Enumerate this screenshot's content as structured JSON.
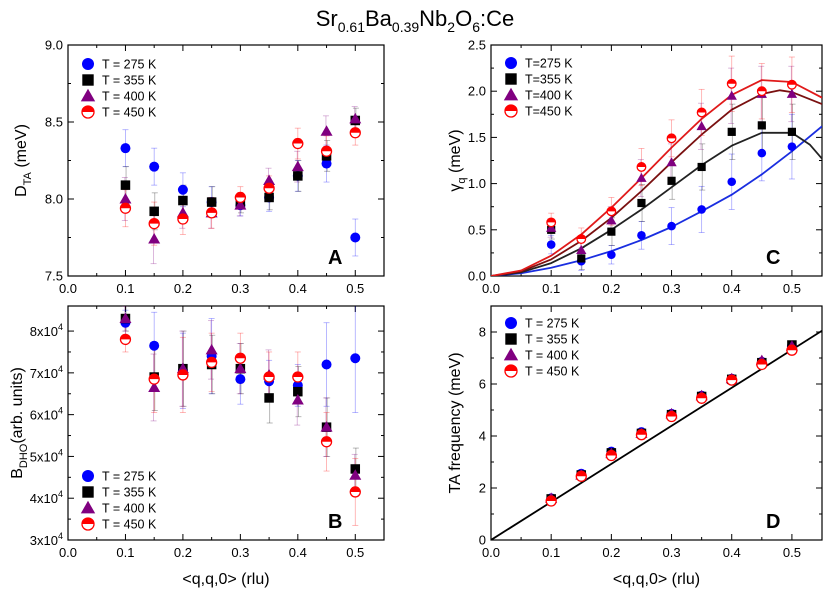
{
  "figure": {
    "title_main": "Sr",
    "title_sub1": "0.61",
    "title_mid": "Ba",
    "title_sub2": "0.39",
    "title_tail1": "Nb",
    "title_sub3": "2",
    "title_tail2": "O",
    "title_sub4": "6",
    "title_end": ":Ce"
  },
  "colors": {
    "275": "#0000ff",
    "355": "#000000",
    "400": "#800080",
    "450": "#ff0000",
    "fit_275": "#1a2ee0",
    "fit_355": "#222222",
    "fit_400": "#7a1010",
    "fit_450": "#e01a1a",
    "fit_d": "#000000"
  },
  "chart_data": [
    {
      "id": "A",
      "type": "scatter",
      "panel_label": "A",
      "xlabel": "",
      "ylabel_main": "D",
      "ylabel_sub": "TA",
      "ylabel_tail": " (meV)",
      "xlim": [
        0.0,
        0.55
      ],
      "ylim": [
        7.5,
        9.0
      ],
      "xticks": [
        0.0,
        0.1,
        0.2,
        0.3,
        0.4,
        0.5
      ],
      "xtick_labels": [
        "0.0",
        "0.1",
        "0.2",
        "0.3",
        "0.4",
        "0.5"
      ],
      "yticks": [
        7.5,
        8.0,
        8.5,
        9.0
      ],
      "ytick_labels": [
        "7.5",
        "8.0",
        "8.5",
        "9.0"
      ],
      "legend_position": "top-left",
      "x": [
        0.1,
        0.15,
        0.2,
        0.25,
        0.3,
        0.35,
        0.4,
        0.45,
        0.5
      ],
      "series": [
        {
          "name": "T = 275 K",
          "key": "275",
          "marker": "circle",
          "values": [
            8.33,
            8.21,
            8.06,
            7.98,
            7.96,
            8.01,
            8.15,
            8.23,
            7.75
          ],
          "err": [
            0.12,
            0.12,
            0.11,
            0.1,
            0.07,
            0.09,
            0.1,
            0.12,
            0.12
          ]
        },
        {
          "name": "T = 355 K",
          "key": "355",
          "marker": "square",
          "values": [
            8.09,
            7.92,
            7.99,
            7.98,
            7.97,
            8.01,
            8.15,
            8.28,
            8.51
          ],
          "err": [
            0.12,
            0.12,
            0.1,
            0.1,
            0.06,
            0.08,
            0.1,
            0.1,
            0.08
          ]
        },
        {
          "name": "T = 400 K",
          "key": "400",
          "marker": "triangle",
          "values": [
            8.0,
            7.74,
            7.91,
            7.91,
            7.96,
            8.12,
            8.21,
            8.44,
            8.52
          ],
          "err": [
            0.14,
            0.16,
            0.1,
            0.1,
            0.07,
            0.08,
            0.1,
            0.1,
            0.08
          ]
        },
        {
          "name": "T = 450 K",
          "key": "450",
          "marker": "halfcircle",
          "values": [
            7.94,
            7.84,
            7.87,
            7.91,
            8.01,
            8.07,
            8.36,
            8.31,
            8.43
          ],
          "err": [
            0.12,
            0.14,
            0.1,
            0.1,
            0.07,
            0.08,
            0.1,
            0.1,
            0.08
          ]
        }
      ]
    },
    {
      "id": "B",
      "type": "scatter",
      "panel_label": "B",
      "xlabel": "<q,q,0> (rlu)",
      "ylabel_main": "B",
      "ylabel_sub": "DHO",
      "ylabel_tail": "(arb. units)",
      "xlim": [
        0.0,
        0.55
      ],
      "ylim": [
        30000,
        86000
      ],
      "xticks": [
        0.0,
        0.1,
        0.2,
        0.3,
        0.4,
        0.5
      ],
      "xtick_labels": [
        "0.0",
        "0.1",
        "0.2",
        "0.3",
        "0.4",
        "0.5"
      ],
      "yticks": [
        30000,
        40000,
        50000,
        60000,
        70000,
        80000
      ],
      "ytick_mant": [
        "3x10",
        "4x10",
        "5x10",
        "6x10",
        "7x10",
        "8x10"
      ],
      "ytick_exp": [
        "4",
        "4",
        "4",
        "4",
        "4",
        "4"
      ],
      "legend_position": "bottom-left",
      "x": [
        0.1,
        0.15,
        0.2,
        0.25,
        0.3,
        0.35,
        0.4,
        0.45,
        0.5
      ],
      "series": [
        {
          "name": "T = 275 K",
          "key": "275",
          "marker": "circle",
          "values": [
            82000,
            76500,
            70500,
            74000,
            68500,
            68000,
            67000,
            72000,
            73500
          ],
          "err": [
            3000,
            8000,
            9000,
            9000,
            6000,
            5000,
            5000,
            10000,
            13000
          ]
        },
        {
          "name": "T = 355 K",
          "key": "355",
          "marker": "square",
          "values": [
            83000,
            69000,
            71000,
            72000,
            71000,
            64000,
            65500,
            57000,
            47000
          ],
          "err": [
            3000,
            8000,
            9000,
            7000,
            6000,
            6000,
            6000,
            7000,
            5000
          ]
        },
        {
          "name": "T = 400 K",
          "key": "400",
          "marker": "triangle",
          "values": [
            83000,
            66500,
            71000,
            75500,
            71000,
            69500,
            63500,
            57000,
            45500
          ],
          "err": [
            3000,
            8000,
            9000,
            7000,
            6000,
            6000,
            6000,
            7000,
            5000
          ]
        },
        {
          "name": "T = 450 K",
          "key": "450",
          "marker": "halfcircle",
          "values": [
            78000,
            68500,
            69500,
            72500,
            73500,
            69000,
            69000,
            53500,
            41500
          ],
          "err": [
            3000,
            8000,
            9000,
            7000,
            6000,
            6000,
            6000,
            7000,
            8000
          ]
        }
      ]
    },
    {
      "id": "C",
      "type": "scatter",
      "panel_label": "C",
      "xlabel": "",
      "ylabel_main": "γ",
      "ylabel_sub": "q",
      "ylabel_tail": " (meV)",
      "xlim": [
        0.0,
        0.55
      ],
      "ylim": [
        0.0,
        2.5
      ],
      "xticks": [
        0.0,
        0.1,
        0.2,
        0.3,
        0.4,
        0.5
      ],
      "xtick_labels": [
        "0.0",
        "0.1",
        "0.2",
        "0.3",
        "0.4",
        "0.5"
      ],
      "yticks": [
        0.0,
        0.5,
        1.0,
        1.5,
        2.0,
        2.5
      ],
      "ytick_labels": [
        "0.0",
        "0.5",
        "1.0",
        "1.5",
        "2.0",
        "2.5"
      ],
      "legend_position": "top-left",
      "x": [
        0.1,
        0.15,
        0.2,
        0.25,
        0.3,
        0.35,
        0.4,
        0.45,
        0.5
      ],
      "series": [
        {
          "name": "T=275 K",
          "key": "275",
          "marker": "circle",
          "values": [
            0.34,
            0.16,
            0.23,
            0.44,
            0.54,
            0.72,
            1.02,
            1.33,
            1.4
          ],
          "err": [
            0.1,
            0.1,
            0.1,
            0.15,
            0.2,
            0.25,
            0.3,
            0.3,
            0.35
          ]
        },
        {
          "name": "T=355 K",
          "key": "355",
          "marker": "square",
          "values": [
            0.5,
            0.19,
            0.48,
            0.79,
            1.03,
            1.18,
            1.56,
            1.63,
            1.56
          ],
          "err": [
            0.1,
            0.12,
            0.15,
            0.2,
            0.2,
            0.25,
            0.3,
            0.3,
            0.3
          ]
        },
        {
          "name": "T=400 K",
          "key": "400",
          "marker": "triangle",
          "values": [
            0.52,
            0.28,
            0.6,
            1.06,
            1.23,
            1.62,
            1.95,
            1.97,
            1.97
          ],
          "err": [
            0.1,
            0.12,
            0.15,
            0.2,
            0.2,
            0.25,
            0.3,
            0.3,
            0.3
          ]
        },
        {
          "name": "T=450 K",
          "key": "450",
          "marker": "halfcircle",
          "values": [
            0.58,
            0.4,
            0.7,
            1.18,
            1.49,
            1.77,
            2.08,
            2.0,
            2.07
          ],
          "err": [
            0.1,
            0.12,
            0.15,
            0.2,
            0.2,
            0.25,
            0.3,
            0.3,
            0.3
          ]
        }
      ],
      "fits": [
        {
          "key": "fit_275",
          "x": [
            0.0,
            0.05,
            0.1,
            0.15,
            0.2,
            0.25,
            0.3,
            0.35,
            0.4,
            0.45,
            0.5,
            0.55
          ],
          "y": [
            0.0,
            0.03,
            0.09,
            0.17,
            0.27,
            0.39,
            0.53,
            0.7,
            0.88,
            1.1,
            1.35,
            1.62
          ]
        },
        {
          "key": "fit_355",
          "x": [
            0.0,
            0.05,
            0.1,
            0.15,
            0.2,
            0.25,
            0.3,
            0.35,
            0.4,
            0.45,
            0.5,
            0.53,
            0.55
          ],
          "y": [
            0.0,
            0.04,
            0.14,
            0.3,
            0.5,
            0.72,
            0.96,
            1.2,
            1.41,
            1.55,
            1.55,
            1.42,
            1.27
          ]
        },
        {
          "key": "fit_400",
          "x": [
            0.0,
            0.05,
            0.1,
            0.15,
            0.2,
            0.25,
            0.3,
            0.35,
            0.4,
            0.45,
            0.48,
            0.5,
            0.55
          ],
          "y": [
            0.0,
            0.05,
            0.18,
            0.38,
            0.63,
            0.92,
            1.23,
            1.53,
            1.8,
            1.97,
            2.01,
            1.99,
            1.86
          ]
        },
        {
          "key": "fit_450",
          "x": [
            0.0,
            0.05,
            0.1,
            0.15,
            0.2,
            0.25,
            0.3,
            0.35,
            0.4,
            0.45,
            0.5,
            0.55
          ],
          "y": [
            0.0,
            0.06,
            0.22,
            0.45,
            0.74,
            1.06,
            1.39,
            1.7,
            1.96,
            2.12,
            2.1,
            1.93
          ]
        }
      ]
    },
    {
      "id": "D",
      "type": "scatter",
      "panel_label": "D",
      "xlabel": "<q,q,0> (rlu)",
      "ylabel_main": "TA frequency (meV)",
      "ylabel_sub": "",
      "ylabel_tail": "",
      "xlim": [
        0.0,
        0.55
      ],
      "ylim": [
        0,
        9
      ],
      "xticks": [
        0.0,
        0.1,
        0.2,
        0.3,
        0.4,
        0.5
      ],
      "xtick_labels": [
        "0.0",
        "0.1",
        "0.2",
        "0.3",
        "0.4",
        "0.5"
      ],
      "yticks": [
        0,
        2,
        4,
        6,
        8
      ],
      "ytick_labels": [
        "0",
        "2",
        "4",
        "6",
        "8"
      ],
      "legend_position": "top-left",
      "x": [
        0.1,
        0.15,
        0.2,
        0.25,
        0.3,
        0.35,
        0.4,
        0.45,
        0.5
      ],
      "series": [
        {
          "name": "T = 275 K",
          "key": "275",
          "marker": "circle",
          "values": [
            1.6,
            2.55,
            3.4,
            4.15,
            4.85,
            5.55,
            6.2,
            6.85,
            7.45
          ],
          "err": [
            0,
            0,
            0,
            0,
            0,
            0,
            0,
            0,
            0
          ]
        },
        {
          "name": "T = 355 K",
          "key": "355",
          "marker": "square",
          "values": [
            1.58,
            2.5,
            3.35,
            4.1,
            4.82,
            5.52,
            6.18,
            6.82,
            7.5
          ],
          "err": [
            0,
            0,
            0,
            0,
            0,
            0,
            0,
            0,
            0
          ]
        },
        {
          "name": "T = 400 K",
          "key": "400",
          "marker": "triangle",
          "values": [
            1.6,
            2.5,
            3.32,
            4.1,
            4.85,
            5.55,
            6.2,
            6.9,
            7.45
          ],
          "err": [
            0,
            0,
            0,
            0,
            0,
            0,
            0,
            0,
            0
          ]
        },
        {
          "name": "T = 450 K",
          "key": "450",
          "marker": "halfcircle",
          "values": [
            1.5,
            2.45,
            3.25,
            4.05,
            4.75,
            5.45,
            6.15,
            6.75,
            7.3
          ],
          "err": [
            0,
            0,
            0,
            0,
            0,
            0,
            0,
            0,
            0
          ]
        }
      ],
      "fits": [
        {
          "key": "fit_d",
          "x": [
            0.0,
            0.55
          ],
          "y": [
            0.0,
            8.05
          ]
        }
      ]
    }
  ]
}
